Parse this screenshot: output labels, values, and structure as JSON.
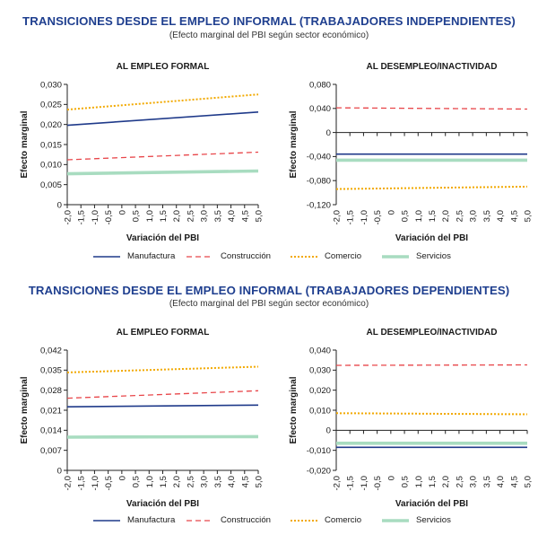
{
  "sections": [
    {
      "title": "TRANSICIONES DESDE EL EMPLEO INFORMAL (TRABAJADORES INDEPENDIENTES)",
      "subtitle": "(Efecto marginal del PBI según sector económico)"
    },
    {
      "title": "TRANSICIONES DESDE EL EMPLEO INFORMAL (TRABAJADORES DEPENDIENTES)",
      "subtitle": "(Efecto marginal del PBI según sector económico)"
    }
  ],
  "legend": [
    {
      "label": "Manufactura",
      "color": "#1f3a8a",
      "style": "solid"
    },
    {
      "label": "Construcción",
      "color": "#e8464a",
      "style": "dashed"
    },
    {
      "label": "Comercio",
      "color": "#f2a900",
      "style": "dotted"
    },
    {
      "label": "Servicios",
      "color": "#a8dcc0",
      "style": "thick"
    }
  ],
  "chart_data": [
    {
      "type": "line",
      "title": "AL EMPLEO FORMAL",
      "xlabel": "Variación del PBI",
      "ylabel": "Efecto marginal",
      "x": [
        -2.0,
        -1.5,
        -1.0,
        -0.5,
        0.0,
        0.5,
        1.0,
        1.5,
        2.0,
        2.5,
        3.0,
        3.5,
        4.0,
        4.5,
        5.0
      ],
      "x_tick_labels": [
        "-2,0",
        "-1,5",
        "-1,0",
        "-0,5",
        "0",
        "0,5",
        "1,0",
        "1,5",
        "2,0",
        "2,5",
        "3,0",
        "3,5",
        "4,0",
        "4,5",
        "5,0"
      ],
      "ylim": [
        0,
        0.03
      ],
      "y_ticks": [
        0,
        0.005,
        0.01,
        0.015,
        0.02,
        0.025,
        0.03
      ],
      "y_tick_labels": [
        "0",
        "0,005",
        "0,010",
        "0,015",
        "0,020",
        "0,025",
        "0,030"
      ],
      "grid": false,
      "series": [
        {
          "name": "Manufactura",
          "x": [
            -2.0,
            5.0
          ],
          "values": [
            0.0198,
            0.0231
          ]
        },
        {
          "name": "Construcción",
          "x": [
            -2.0,
            5.0
          ],
          "values": [
            0.0112,
            0.0131
          ]
        },
        {
          "name": "Comercio",
          "x": [
            -2.0,
            5.0
          ],
          "values": [
            0.0237,
            0.0275
          ]
        },
        {
          "name": "Servicios",
          "x": [
            -2.0,
            5.0
          ],
          "values": [
            0.0077,
            0.0084
          ]
        }
      ]
    },
    {
      "type": "line",
      "title": "AL DESEMPLEO/INACTIVIDAD",
      "xlabel": "Variación del PBI",
      "ylabel": "Efecto marginal",
      "x": [
        -2.0,
        -1.5,
        -1.0,
        -0.5,
        0.0,
        0.5,
        1.0,
        1.5,
        2.0,
        2.5,
        3.0,
        3.5,
        4.0,
        4.5,
        5.0
      ],
      "x_tick_labels": [
        "-2,0",
        "-1,5",
        "-1,0",
        "-0,5",
        "0",
        "0,5",
        "1,0",
        "1,5",
        "2,0",
        "2,5",
        "3,0",
        "3,5",
        "4,0",
        "4,5",
        "5,0"
      ],
      "ylim": [
        -0.12,
        0.08
      ],
      "y_ticks": [
        -0.12,
        -0.08,
        -0.04,
        0,
        0.04,
        0.08
      ],
      "y_tick_labels": [
        "-0,120",
        "-0,080",
        "-0,040",
        "0",
        "0,040",
        "0,080"
      ],
      "grid": false,
      "series": [
        {
          "name": "Manufactura",
          "x": [
            -2.0,
            5.0
          ],
          "values": [
            -0.036,
            -0.036
          ]
        },
        {
          "name": "Construcción",
          "x": [
            -2.0,
            5.0
          ],
          "values": [
            0.041,
            0.039
          ]
        },
        {
          "name": "Comercio",
          "x": [
            -2.0,
            5.0
          ],
          "values": [
            -0.094,
            -0.09
          ]
        },
        {
          "name": "Servicios",
          "x": [
            -2.0,
            5.0
          ],
          "values": [
            -0.046,
            -0.046
          ]
        }
      ]
    },
    {
      "type": "line",
      "title": "AL EMPLEO FORMAL",
      "xlabel": "Variación del PBI",
      "ylabel": "Efecto marginal",
      "x": [
        -2.0,
        -1.5,
        -1.0,
        -0.5,
        0.0,
        0.5,
        1.0,
        1.5,
        2.0,
        2.5,
        3.0,
        3.5,
        4.0,
        4.5,
        5.0
      ],
      "x_tick_labels": [
        "-2,0",
        "-1,5",
        "-1,0",
        "-0,5",
        "0",
        "0,5",
        "1,0",
        "1,5",
        "2,0",
        "2,5",
        "3,0",
        "3,5",
        "4,0",
        "4,5",
        "5,0"
      ],
      "ylim": [
        0,
        0.042
      ],
      "y_ticks": [
        0,
        0.007,
        0.014,
        0.021,
        0.028,
        0.035,
        0.042
      ],
      "y_tick_labels": [
        "0",
        "0,007",
        "0,014",
        "0,021",
        "0,028",
        "0,035",
        "0,042"
      ],
      "grid": false,
      "series": [
        {
          "name": "Manufactura",
          "x": [
            -2.0,
            5.0
          ],
          "values": [
            0.0222,
            0.0228
          ]
        },
        {
          "name": "Construcción",
          "x": [
            -2.0,
            5.0
          ],
          "values": [
            0.0252,
            0.0278
          ]
        },
        {
          "name": "Comercio",
          "x": [
            -2.0,
            5.0
          ],
          "values": [
            0.0342,
            0.0362
          ]
        },
        {
          "name": "Servicios",
          "x": [
            -2.0,
            5.0
          ],
          "values": [
            0.0116,
            0.0118
          ]
        }
      ]
    },
    {
      "type": "line",
      "title": "AL DESEMPLEO/INACTIVIDAD",
      "xlabel": "Variación del PBI",
      "ylabel": "Efecto marginal",
      "x": [
        -2.0,
        -1.5,
        -1.0,
        -0.5,
        0.0,
        0.5,
        1.0,
        1.5,
        2.0,
        2.5,
        3.0,
        3.5,
        4.0,
        4.5,
        5.0
      ],
      "x_tick_labels": [
        "-2,0",
        "-1,5",
        "-1,0",
        "-0,5",
        "0",
        "0,5",
        "1,0",
        "1,5",
        "2,0",
        "2,5",
        "3,0",
        "3,5",
        "4,0",
        "4,5",
        "5,0"
      ],
      "ylim": [
        -0.02,
        0.04
      ],
      "y_ticks": [
        -0.02,
        -0.01,
        0,
        0.01,
        0.02,
        0.03,
        0.04
      ],
      "y_tick_labels": [
        "-0,020",
        "-0,010",
        "0",
        "0,010",
        "0,020",
        "0,030",
        "0,040"
      ],
      "grid": false,
      "series": [
        {
          "name": "Manufactura",
          "x": [
            -2.0,
            5.0
          ],
          "values": [
            -0.0085,
            -0.0085
          ]
        },
        {
          "name": "Construcción",
          "x": [
            -2.0,
            5.0
          ],
          "values": [
            0.0324,
            0.0326
          ]
        },
        {
          "name": "Comercio",
          "x": [
            -2.0,
            5.0
          ],
          "values": [
            0.0085,
            0.008
          ]
        },
        {
          "name": "Servicios",
          "x": [
            -2.0,
            5.0
          ],
          "values": [
            -0.0065,
            -0.0065
          ]
        }
      ]
    }
  ]
}
